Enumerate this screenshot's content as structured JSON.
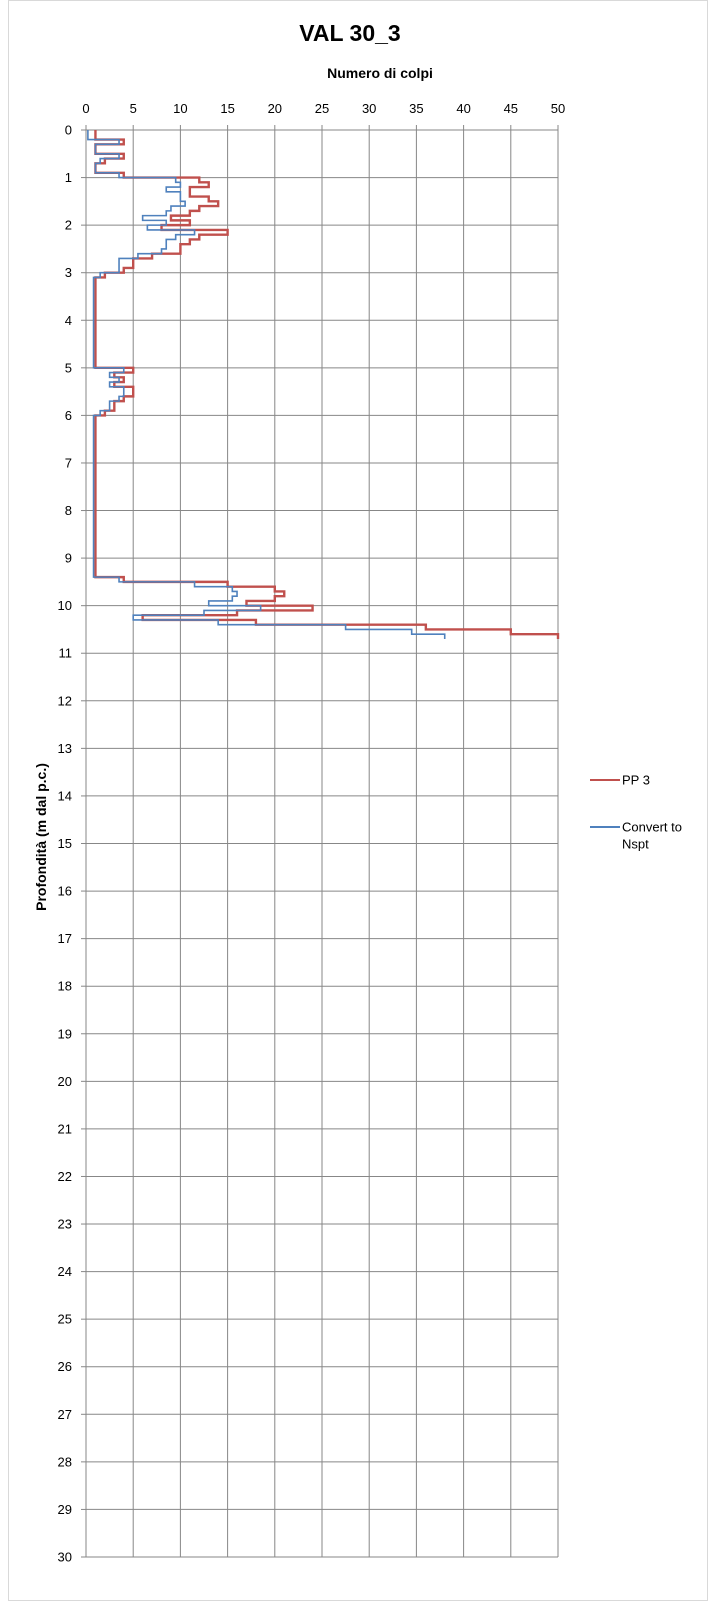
{
  "chart_data": {
    "type": "line",
    "title": "VAL 30_3",
    "xlabel": "Numero di colpi",
    "ylabel": "Profondità (m dal p.c.)",
    "xlim": [
      0,
      50
    ],
    "ylim": [
      0,
      30
    ],
    "x_ticks": [
      "0",
      "5",
      "10",
      "15",
      "20",
      "25",
      "30",
      "35",
      "40",
      "45",
      "50"
    ],
    "y_ticks": [
      "0",
      "1",
      "2",
      "3",
      "4",
      "5",
      "6",
      "7",
      "8",
      "9",
      "10",
      "11",
      "12",
      "13",
      "14",
      "15",
      "16",
      "17",
      "18",
      "19",
      "20",
      "21",
      "22",
      "23",
      "24",
      "25",
      "26",
      "27",
      "28",
      "29",
      "30"
    ],
    "y_inverted": true,
    "x_axis_position": "top",
    "grid": true,
    "legend_position": "right",
    "colors": {
      "pp3": "#c0504d",
      "nspt": "#4f81bd"
    },
    "series": [
      {
        "name": "PP 3",
        "key": "pp3",
        "step_profile": [
          [
            0.0,
            0.2,
            1
          ],
          [
            0.2,
            0.3,
            4
          ],
          [
            0.3,
            0.5,
            1
          ],
          [
            0.5,
            0.6,
            4
          ],
          [
            0.6,
            0.7,
            2
          ],
          [
            0.7,
            0.9,
            1
          ],
          [
            0.9,
            1.0,
            4
          ],
          [
            1.0,
            1.1,
            12
          ],
          [
            1.1,
            1.2,
            13
          ],
          [
            1.2,
            1.4,
            11
          ],
          [
            1.4,
            1.5,
            13
          ],
          [
            1.5,
            1.6,
            14
          ],
          [
            1.6,
            1.7,
            12
          ],
          [
            1.7,
            1.8,
            11
          ],
          [
            1.8,
            1.9,
            9
          ],
          [
            1.9,
            2.0,
            11
          ],
          [
            2.0,
            2.1,
            8
          ],
          [
            2.1,
            2.2,
            15
          ],
          [
            2.2,
            2.3,
            12
          ],
          [
            2.3,
            2.4,
            11
          ],
          [
            2.4,
            2.6,
            10
          ],
          [
            2.6,
            2.7,
            7
          ],
          [
            2.7,
            2.8,
            5
          ],
          [
            2.8,
            2.9,
            5
          ],
          [
            2.9,
            3.0,
            4
          ],
          [
            3.0,
            3.1,
            2
          ],
          [
            3.1,
            5.0,
            1
          ],
          [
            5.0,
            5.1,
            5
          ],
          [
            5.1,
            5.2,
            3
          ],
          [
            5.2,
            5.3,
            4
          ],
          [
            5.3,
            5.4,
            3
          ],
          [
            5.4,
            5.5,
            5
          ],
          [
            5.5,
            5.6,
            5
          ],
          [
            5.6,
            5.7,
            4
          ],
          [
            5.7,
            5.8,
            3
          ],
          [
            5.8,
            5.9,
            3
          ],
          [
            5.9,
            6.0,
            2
          ],
          [
            6.0,
            9.4,
            1
          ],
          [
            9.4,
            9.5,
            4
          ],
          [
            9.5,
            9.6,
            15
          ],
          [
            9.6,
            9.7,
            20
          ],
          [
            9.7,
            9.8,
            21
          ],
          [
            9.8,
            9.9,
            20
          ],
          [
            9.9,
            10.0,
            17
          ],
          [
            10.0,
            10.1,
            24
          ],
          [
            10.1,
            10.2,
            16
          ],
          [
            10.2,
            10.3,
            6
          ],
          [
            10.3,
            10.4,
            18
          ],
          [
            10.4,
            10.5,
            36
          ],
          [
            10.5,
            10.6,
            45
          ],
          [
            10.6,
            10.7,
            50
          ]
        ]
      },
      {
        "name": "Convert to Nspt",
        "key": "nspt",
        "step_profile": [
          [
            0.0,
            0.2,
            0.2
          ],
          [
            0.2,
            0.3,
            3.5
          ],
          [
            0.3,
            0.5,
            1
          ],
          [
            0.5,
            0.6,
            3.5
          ],
          [
            0.6,
            0.7,
            1.5
          ],
          [
            0.7,
            0.9,
            1
          ],
          [
            0.9,
            1.0,
            3.5
          ],
          [
            1.0,
            1.1,
            9.5
          ],
          [
            1.1,
            1.2,
            10
          ],
          [
            1.2,
            1.3,
            8.5
          ],
          [
            1.3,
            1.5,
            10
          ],
          [
            1.5,
            1.6,
            10.5
          ],
          [
            1.6,
            1.7,
            9
          ],
          [
            1.7,
            1.8,
            8.5
          ],
          [
            1.8,
            1.9,
            6
          ],
          [
            1.9,
            2.0,
            8.5
          ],
          [
            2.0,
            2.1,
            6.5
          ],
          [
            2.1,
            2.2,
            11.5
          ],
          [
            2.2,
            2.3,
            9.5
          ],
          [
            2.3,
            2.5,
            8.5
          ],
          [
            2.5,
            2.6,
            8
          ],
          [
            2.6,
            2.7,
            5.5
          ],
          [
            2.7,
            2.9,
            3.5
          ],
          [
            2.9,
            3.0,
            3.5
          ],
          [
            3.0,
            3.1,
            1.5
          ],
          [
            3.1,
            5.0,
            0.8
          ],
          [
            5.0,
            5.1,
            4
          ],
          [
            5.1,
            5.2,
            2.5
          ],
          [
            5.2,
            5.3,
            3.5
          ],
          [
            5.3,
            5.4,
            2.5
          ],
          [
            5.4,
            5.6,
            4
          ],
          [
            5.6,
            5.7,
            3.5
          ],
          [
            5.7,
            5.8,
            2.5
          ],
          [
            5.8,
            5.9,
            2.5
          ],
          [
            5.9,
            6.0,
            1.5
          ],
          [
            6.0,
            9.4,
            0.8
          ],
          [
            9.4,
            9.5,
            3.5
          ],
          [
            9.5,
            9.6,
            11.5
          ],
          [
            9.6,
            9.7,
            15.5
          ],
          [
            9.7,
            9.8,
            16
          ],
          [
            9.8,
            9.9,
            15.5
          ],
          [
            9.9,
            10.0,
            13
          ],
          [
            10.0,
            10.1,
            18.5
          ],
          [
            10.1,
            10.2,
            12.5
          ],
          [
            10.2,
            10.3,
            5
          ],
          [
            10.3,
            10.4,
            14
          ],
          [
            10.4,
            10.5,
            27.5
          ],
          [
            10.5,
            10.6,
            34.5
          ],
          [
            10.6,
            10.7,
            38
          ]
        ]
      }
    ]
  }
}
